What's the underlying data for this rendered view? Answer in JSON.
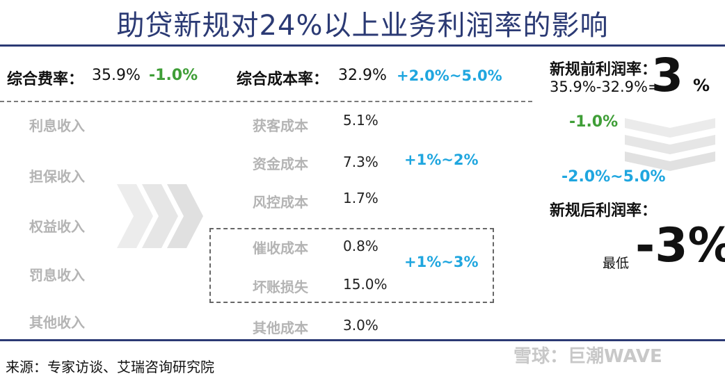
{
  "title": "助贷新规对24%以上业务利润率的影响",
  "header": {
    "fee_label": "综合费率：",
    "fee_value": "35.9%",
    "fee_change": "-1.0%",
    "cost_label": "综合成本率：",
    "cost_value": "32.9%",
    "cost_change": "+2.0%~5.0%"
  },
  "income_items": [
    "利息收入",
    "担保收入",
    "权益收入",
    "罚息收入",
    "其他收入"
  ],
  "cost_items": [
    {
      "name": "获客成本",
      "value": "5.1%"
    },
    {
      "name": "资金成本",
      "value": "7.3%"
    },
    {
      "name": "风控成本",
      "value": "1.7%"
    },
    {
      "name": "催收成本",
      "value": "0.8%"
    },
    {
      "name": "坏账损失",
      "value": "15.0%"
    },
    {
      "name": "其他成本",
      "value": "3.0%"
    }
  ],
  "cost_ranges": {
    "funding": "+1%~2%",
    "collection": "+1%~3%"
  },
  "right_panel": {
    "before_label": "新规前利润率：",
    "before_formula": "35.9%-32.9%=",
    "before_value": "3",
    "before_unit": "%",
    "change_fee": "-1.0%",
    "change_cost": "-2.0%~5.0%",
    "after_label": "新规后利润率：",
    "after_prefix": "最低",
    "after_value": "-3%"
  },
  "source": "来源：专家访谈、艾瑞咨询研究院",
  "watermark": "雪球：巨潮WAVE",
  "colors": {
    "title": "#2b3a74",
    "green": "#3f9e37",
    "cyan": "#1fa6df",
    "muted": "#b4b4b4"
  }
}
